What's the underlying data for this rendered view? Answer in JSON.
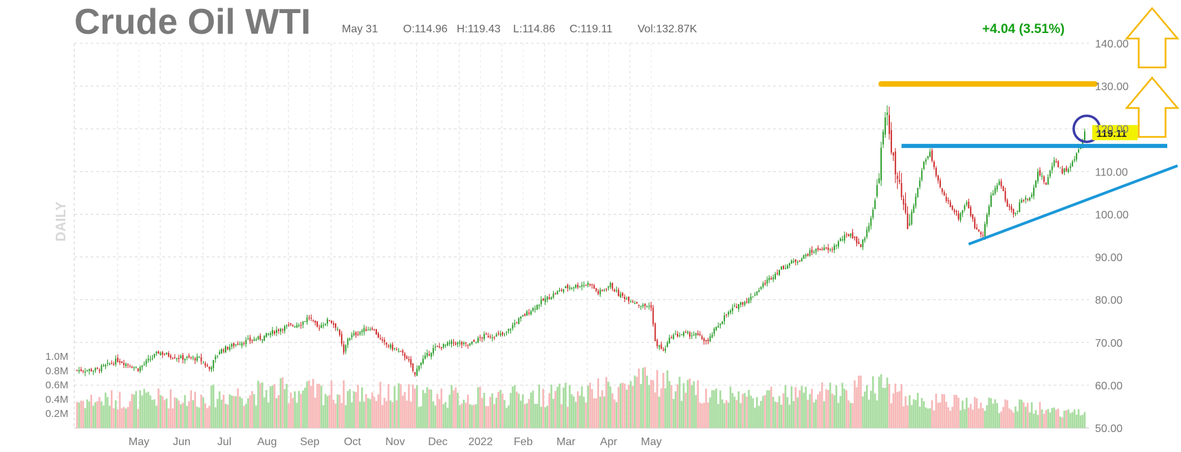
{
  "header": {
    "title": "Crude Oil WTI",
    "date": "May 31",
    "open": "O:114.96",
    "high": "H:119.43",
    "low": "L:114.86",
    "close": "C:119.11",
    "volume": "Vol:132.87K",
    "change": "+4.04 (3.51%)"
  },
  "colors": {
    "up": "#229922",
    "down": "#cc1f1f",
    "vol_up": "#a8dca0",
    "vol_down": "#f7b8b8",
    "resistance": "#f5b800",
    "support": "#1a98d8",
    "highlight": "#3a3aaa",
    "last_price_bg": "#f2f200"
  },
  "chart_data": {
    "type": "candlestick",
    "title": "Crude Oil WTI",
    "ylabel": "DAILY",
    "ylim": [
      50,
      140
    ],
    "y_ticks": [
      "140.00",
      "130.00",
      "120.00",
      "110.00",
      "100.00",
      "90.00",
      "80.00",
      "70.00",
      "60.00",
      "50.00"
    ],
    "x_tick_labels": [
      "May",
      "Jun",
      "Jul",
      "Aug",
      "Sep",
      "Oct",
      "Nov",
      "Dec",
      "2022",
      "Feb",
      "Mar",
      "Apr",
      "May"
    ],
    "volume_ticks": [
      "1.0M",
      "0.8M",
      "0.6M",
      "0.4M",
      "0.2M"
    ],
    "volume_ylim": [
      0,
      1.0
    ],
    "last_price": "119.11",
    "close_path": [
      [
        0,
        63.5
      ],
      [
        10,
        63.6
      ],
      [
        20,
        65.9
      ],
      [
        30,
        63.8
      ],
      [
        40,
        67.7
      ],
      [
        50,
        66.4
      ],
      [
        60,
        66.2
      ],
      [
        65,
        63.8
      ],
      [
        70,
        68.0
      ],
      [
        80,
        70.0
      ],
      [
        90,
        71.0
      ],
      [
        100,
        73.3
      ],
      [
        110,
        74.5
      ],
      [
        114,
        76.0
      ],
      [
        118,
        73.5
      ],
      [
        124,
        75.3
      ],
      [
        128,
        73.3
      ],
      [
        131,
        67.4
      ],
      [
        133,
        71.0
      ],
      [
        140,
        72.8
      ],
      [
        145,
        73.5
      ],
      [
        150,
        70.0
      ],
      [
        156,
        68.5
      ],
      [
        162,
        66.5
      ],
      [
        166,
        62.3
      ],
      [
        168,
        65.0
      ],
      [
        175,
        68.5
      ],
      [
        185,
        70.0
      ],
      [
        192,
        69.3
      ],
      [
        200,
        71.5
      ],
      [
        210,
        71.8
      ],
      [
        215,
        74.5
      ],
      [
        220,
        76.5
      ],
      [
        228,
        79.5
      ],
      [
        235,
        81.5
      ],
      [
        240,
        82.8
      ],
      [
        248,
        83.5
      ],
      [
        252,
        83.8
      ],
      [
        256,
        81.5
      ],
      [
        262,
        83.5
      ],
      [
        266,
        81.2
      ],
      [
        272,
        80.0
      ],
      [
        278,
        78.5
      ],
      [
        282,
        78.5
      ],
      [
        284,
        70.0
      ],
      [
        288,
        68.0
      ],
      [
        292,
        71.5
      ],
      [
        298,
        72.0
      ],
      [
        304,
        71.8
      ],
      [
        310,
        70.0
      ],
      [
        312,
        72.0
      ],
      [
        318,
        76.0
      ],
      [
        325,
        79.0
      ],
      [
        330,
        80.0
      ],
      [
        338,
        84.0
      ],
      [
        345,
        87.0
      ],
      [
        350,
        88.5
      ],
      [
        355,
        89.5
      ],
      [
        360,
        91.0
      ],
      [
        365,
        92.0
      ],
      [
        370,
        91.5
      ],
      [
        375,
        94.0
      ],
      [
        380,
        95.5
      ],
      [
        385,
        92.5
      ],
      [
        388,
        96.0
      ],
      [
        392,
        103.0
      ],
      [
        394,
        110.0
      ],
      [
        396,
        119.0
      ],
      [
        398,
        123.7
      ],
      [
        400,
        115.7
      ],
      [
        402,
        109.3
      ],
      [
        404,
        106.0
      ],
      [
        406,
        101.5
      ],
      [
        408,
        96.5
      ],
      [
        412,
        104.0
      ],
      [
        416,
        112.3
      ],
      [
        419,
        114.5
      ],
      [
        422,
        108.5
      ],
      [
        426,
        104.0
      ],
      [
        430,
        101.5
      ],
      [
        433,
        99.3
      ],
      [
        437,
        103.0
      ],
      [
        441,
        97.0
      ],
      [
        445,
        95.5
      ],
      [
        449,
        104.0
      ],
      [
        453,
        108.0
      ],
      [
        457,
        102.0
      ],
      [
        461,
        100.0
      ],
      [
        464,
        103.5
      ],
      [
        468,
        103.5
      ],
      [
        472,
        110.0
      ],
      [
        476,
        107.0
      ],
      [
        480,
        113.0
      ],
      [
        484,
        110.0
      ],
      [
        488,
        111.0
      ],
      [
        492,
        115.0
      ],
      [
        495,
        119.11
      ]
    ],
    "volume_path": [
      [
        0,
        0.4
      ],
      [
        60,
        0.45
      ],
      [
        100,
        0.55
      ],
      [
        150,
        0.5
      ],
      [
        200,
        0.45
      ],
      [
        250,
        0.5
      ],
      [
        285,
        0.7
      ],
      [
        300,
        0.55
      ],
      [
        330,
        0.45
      ],
      [
        370,
        0.5
      ],
      [
        395,
        0.65
      ],
      [
        410,
        0.4
      ],
      [
        440,
        0.35
      ],
      [
        470,
        0.3
      ],
      [
        495,
        0.2
      ]
    ],
    "resistance": {
      "y": 130.5,
      "t_start": 395,
      "t_end": 500
    },
    "horizontal_support": {
      "y": 116.0,
      "t_start": 405,
      "t_end": 532
    },
    "rising_trendline": {
      "t_start": 438,
      "y_start": 93.0,
      "t_end": 532,
      "y_end": 110.0
    },
    "highlight_circle": {
      "t": 496,
      "y": 120.0
    }
  }
}
